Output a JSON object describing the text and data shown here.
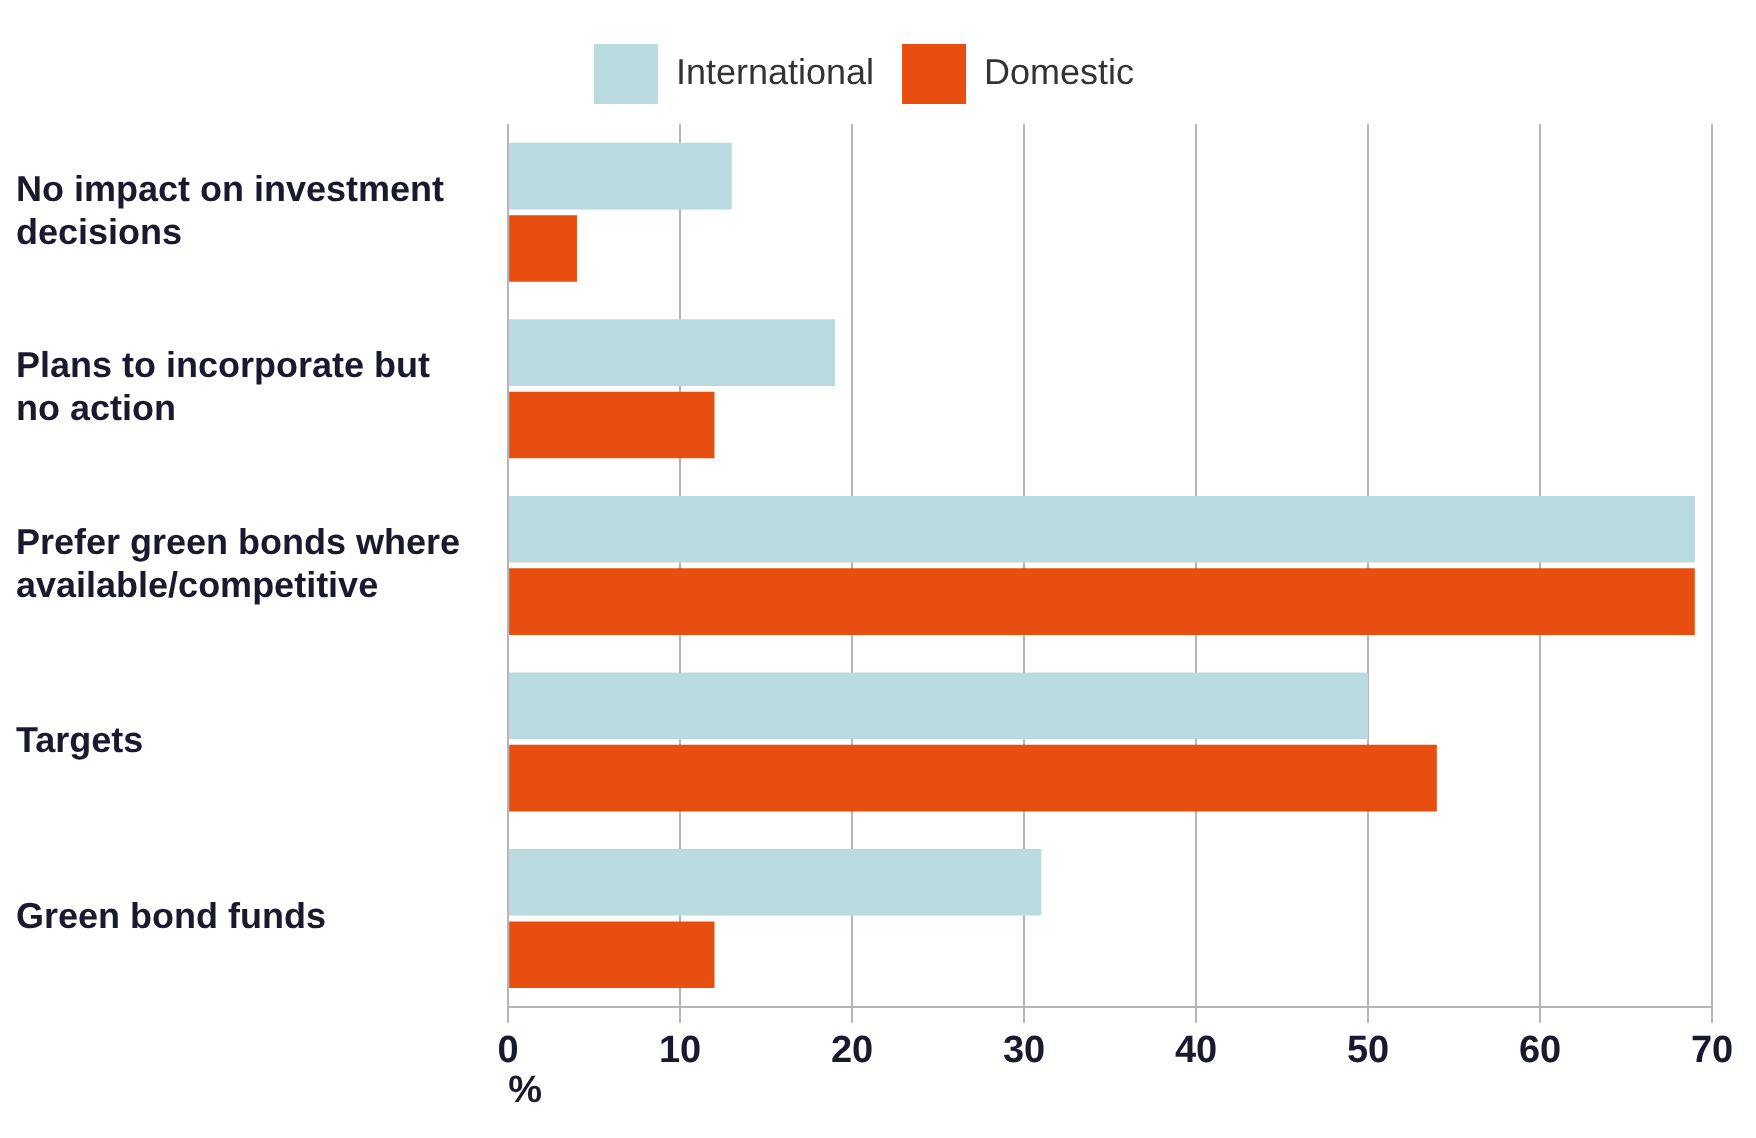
{
  "chart_data": {
    "type": "bar",
    "orientation": "horizontal",
    "xlabel": "%",
    "categories": [
      "No impact on investment decisions",
      "Plans to incorporate but no action",
      "Prefer green bonds where available/competitive",
      "Targets",
      "Green bond funds"
    ],
    "series": [
      {
        "name": "International",
        "color": "#b8dbe0",
        "values": [
          13,
          19,
          69,
          50,
          31
        ]
      },
      {
        "name": "Domestic",
        "color": "#e84e0f",
        "values": [
          4,
          12,
          69,
          54,
          12
        ]
      }
    ],
    "xlim": [
      0,
      70
    ],
    "xticks": [
      0,
      10,
      20,
      30,
      40,
      50,
      60,
      70
    ],
    "grid": "x",
    "legend": "top"
  }
}
